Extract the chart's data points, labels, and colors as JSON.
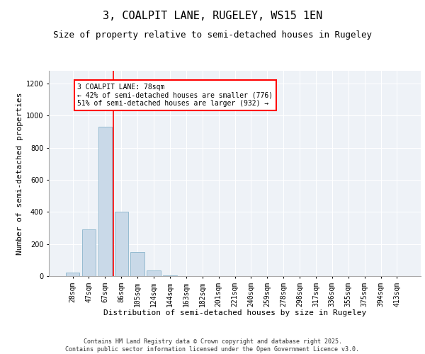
{
  "title1": "3, COALPIT LANE, RUGELEY, WS15 1EN",
  "title2": "Size of property relative to semi-detached houses in Rugeley",
  "xlabel": "Distribution of semi-detached houses by size in Rugeley",
  "ylabel": "Number of semi-detached properties",
  "categories": [
    "28sqm",
    "47sqm",
    "67sqm",
    "86sqm",
    "105sqm",
    "124sqm",
    "144sqm",
    "163sqm",
    "182sqm",
    "201sqm",
    "221sqm",
    "240sqm",
    "259sqm",
    "278sqm",
    "298sqm",
    "317sqm",
    "336sqm",
    "355sqm",
    "375sqm",
    "394sqm",
    "413sqm"
  ],
  "values": [
    20,
    290,
    930,
    400,
    150,
    35,
    5,
    0,
    0,
    0,
    0,
    0,
    0,
    0,
    0,
    0,
    0,
    0,
    0,
    0,
    0
  ],
  "bar_color": "#c9d9e8",
  "bar_edge_color": "#8ab4cc",
  "vline_x": 2.5,
  "vline_color": "red",
  "annotation_text": "3 COALPIT LANE: 78sqm\n← 42% of semi-detached houses are smaller (776)\n51% of semi-detached houses are larger (932) →",
  "annotation_box_color": "white",
  "annotation_box_edge_color": "red",
  "ylim": [
    0,
    1280
  ],
  "yticks": [
    0,
    200,
    400,
    600,
    800,
    1000,
    1200
  ],
  "background_color": "#eef2f7",
  "footer_text": "Contains HM Land Registry data © Crown copyright and database right 2025.\nContains public sector information licensed under the Open Government Licence v3.0.",
  "title1_fontsize": 11,
  "title2_fontsize": 9,
  "axis_label_fontsize": 8,
  "tick_fontsize": 7,
  "annotation_fontsize": 7,
  "footer_fontsize": 6
}
